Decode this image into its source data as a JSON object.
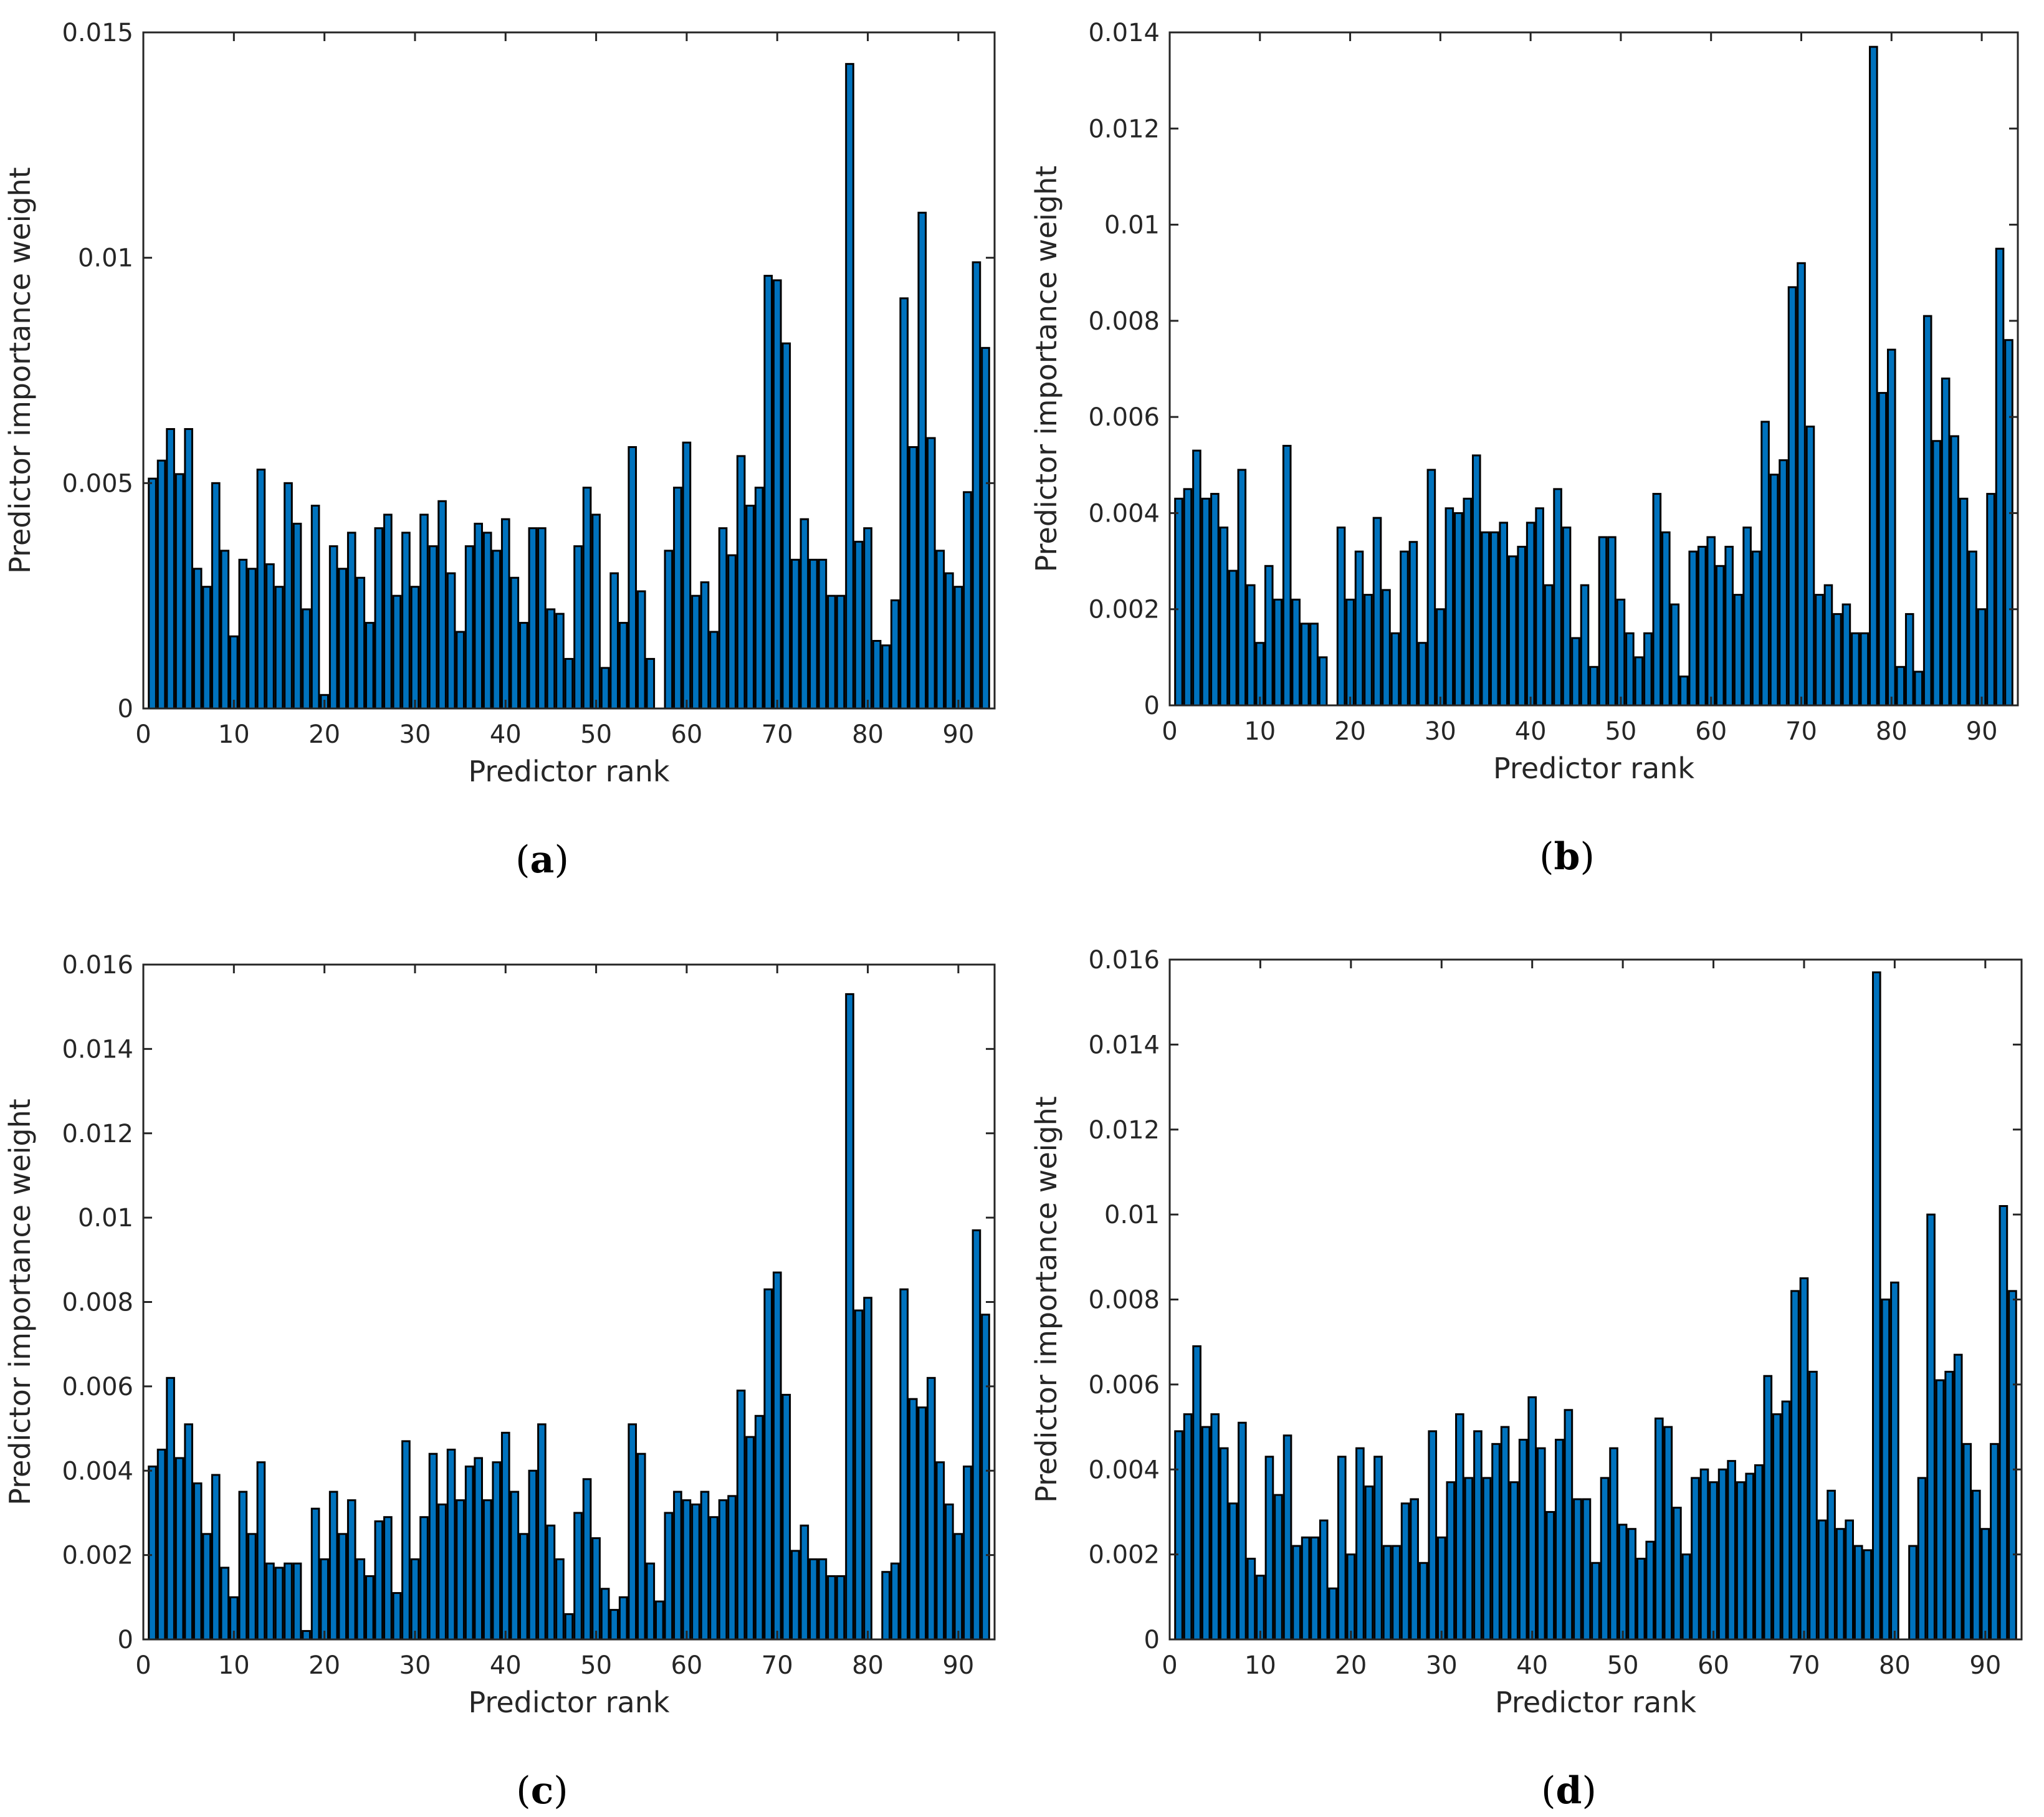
{
  "colors": {
    "bar_fill": "#0072BD",
    "bar_edge": "#000000",
    "axis": "#262626"
  },
  "chart_data": [
    {
      "type": "bar",
      "panel_label": "a",
      "xlabel": "Predictor rank",
      "ylabel": "Predictor importance weight",
      "xlim": [
        0,
        94
      ],
      "xticks": [
        0,
        10,
        20,
        30,
        40,
        50,
        60,
        70,
        80,
        90
      ],
      "ylim": [
        0,
        0.015
      ],
      "yticks": [
        0,
        0.005,
        0.01,
        0.015
      ],
      "ytick_labels": [
        "0",
        "0.005",
        "0.01",
        "0.015"
      ],
      "x": [
        1,
        2,
        3,
        4,
        5,
        6,
        7,
        8,
        9,
        10,
        11,
        12,
        13,
        14,
        15,
        16,
        17,
        18,
        19,
        20,
        21,
        22,
        23,
        24,
        25,
        26,
        27,
        28,
        29,
        30,
        31,
        32,
        33,
        34,
        35,
        36,
        37,
        38,
        39,
        40,
        41,
        42,
        43,
        44,
        45,
        46,
        47,
        48,
        49,
        50,
        51,
        52,
        53,
        54,
        55,
        56,
        57,
        58,
        59,
        60,
        61,
        62,
        63,
        64,
        65,
        66,
        67,
        68,
        69,
        70,
        71,
        72,
        73,
        74,
        75,
        76,
        77,
        78,
        79,
        80,
        81,
        82,
        83,
        84,
        85,
        86,
        87,
        88,
        89,
        90,
        91,
        92,
        93
      ],
      "values": [
        0.0051,
        0.0055,
        0.0062,
        0.0052,
        0.0062,
        0.0031,
        0.0027,
        0.005,
        0.0035,
        0.0016,
        0.0033,
        0.0031,
        0.0053,
        0.0032,
        0.0027,
        0.005,
        0.0041,
        0.0022,
        0.0045,
        0.0003,
        0.0036,
        0.0031,
        0.0039,
        0.0029,
        0.0019,
        0.004,
        0.0043,
        0.0025,
        0.0039,
        0.0027,
        0.0043,
        0.0036,
        0.0046,
        0.003,
        0.0017,
        0.0036,
        0.0041,
        0.0039,
        0.0035,
        0.0042,
        0.0029,
        0.0019,
        0.004,
        0.004,
        0.0022,
        0.0021,
        0.0011,
        0.0036,
        0.0049,
        0.0043,
        0.0009,
        0.003,
        0.0019,
        0.0058,
        0.0026,
        0.0011,
        0,
        0.0035,
        0.0049,
        0.0059,
        0.0025,
        0.0028,
        0.0017,
        0.004,
        0.0034,
        0.0056,
        0.0045,
        0.0049,
        0.0096,
        0.0095,
        0.0081,
        0.0033,
        0.0042,
        0.0033,
        0.0033,
        0.0025,
        0.0025,
        0.0143,
        0.0037,
        0.004,
        0.0015,
        0.0014,
        0.0024,
        0.0091,
        0.0058,
        0.011,
        0.006,
        0.0035,
        0.003,
        0.0027,
        0.0048,
        0.0099,
        0.008
      ]
    },
    {
      "type": "bar",
      "panel_label": "b",
      "xlabel": "Predictor rank",
      "ylabel": "Predictor importance weight",
      "xlim": [
        0,
        94
      ],
      "xticks": [
        0,
        10,
        20,
        30,
        40,
        50,
        60,
        70,
        80,
        90
      ],
      "ylim": [
        0,
        0.014
      ],
      "yticks": [
        0,
        0.002,
        0.004,
        0.006,
        0.008,
        0.01,
        0.012,
        0.014
      ],
      "ytick_labels": [
        "0",
        "0.002",
        "0.004",
        "0.006",
        "0.008",
        "0.01",
        "0.012",
        "0.014"
      ],
      "x": [
        1,
        2,
        3,
        4,
        5,
        6,
        7,
        8,
        9,
        10,
        11,
        12,
        13,
        14,
        15,
        16,
        17,
        18,
        19,
        20,
        21,
        22,
        23,
        24,
        25,
        26,
        27,
        28,
        29,
        30,
        31,
        32,
        33,
        34,
        35,
        36,
        37,
        38,
        39,
        40,
        41,
        42,
        43,
        44,
        45,
        46,
        47,
        48,
        49,
        50,
        51,
        52,
        53,
        54,
        55,
        56,
        57,
        58,
        59,
        60,
        61,
        62,
        63,
        64,
        65,
        66,
        67,
        68,
        69,
        70,
        71,
        72,
        73,
        74,
        75,
        76,
        77,
        78,
        79,
        80,
        81,
        82,
        83,
        84,
        85,
        86,
        87,
        88,
        89,
        90,
        91,
        92,
        93
      ],
      "values": [
        0.0043,
        0.0045,
        0.0053,
        0.0043,
        0.0044,
        0.0037,
        0.0028,
        0.0049,
        0.0025,
        0.0013,
        0.0029,
        0.0022,
        0.0054,
        0.0022,
        0.0017,
        0.0017,
        0.001,
        0,
        0.0037,
        0.0022,
        0.0032,
        0.0023,
        0.0039,
        0.0024,
        0.0015,
        0.0032,
        0.0034,
        0.0013,
        0.0049,
        0.002,
        0.0041,
        0.004,
        0.0043,
        0.0052,
        0.0036,
        0.0036,
        0.0038,
        0.0031,
        0.0033,
        0.0038,
        0.0041,
        0.0025,
        0.0045,
        0.0037,
        0.0014,
        0.0025,
        0.0008,
        0.0035,
        0.0035,
        0.0022,
        0.0015,
        0.001,
        0.0015,
        0.0044,
        0.0036,
        0.0021,
        0.0006,
        0.0032,
        0.0033,
        0.0035,
        0.0029,
        0.0033,
        0.0023,
        0.0037,
        0.0032,
        0.0059,
        0.0048,
        0.0051,
        0.0087,
        0.0092,
        0.0058,
        0.0023,
        0.0025,
        0.0019,
        0.0021,
        0.0015,
        0.0015,
        0.0137,
        0.0065,
        0.0074,
        0.0008,
        0.0019,
        0.0007,
        0.0081,
        0.0055,
        0.0068,
        0.0056,
        0.0043,
        0.0032,
        0.002,
        0.0044,
        0.0095,
        0.0076
      ]
    },
    {
      "type": "bar",
      "panel_label": "c",
      "xlabel": "Predictor rank",
      "ylabel": "Predictor importance weight",
      "xlim": [
        0,
        94
      ],
      "xticks": [
        0,
        10,
        20,
        30,
        40,
        50,
        60,
        70,
        80,
        90
      ],
      "ylim": [
        0,
        0.016
      ],
      "yticks": [
        0,
        0.002,
        0.004,
        0.006,
        0.008,
        0.01,
        0.012,
        0.014,
        0.016
      ],
      "ytick_labels": [
        "0",
        "0.002",
        "0.004",
        "0.006",
        "0.008",
        "0.01",
        "0.012",
        "0.014",
        "0.016"
      ],
      "x": [
        1,
        2,
        3,
        4,
        5,
        6,
        7,
        8,
        9,
        10,
        11,
        12,
        13,
        14,
        15,
        16,
        17,
        18,
        19,
        20,
        21,
        22,
        23,
        24,
        25,
        26,
        27,
        28,
        29,
        30,
        31,
        32,
        33,
        34,
        35,
        36,
        37,
        38,
        39,
        40,
        41,
        42,
        43,
        44,
        45,
        46,
        47,
        48,
        49,
        50,
        51,
        52,
        53,
        54,
        55,
        56,
        57,
        58,
        59,
        60,
        61,
        62,
        63,
        64,
        65,
        66,
        67,
        68,
        69,
        70,
        71,
        72,
        73,
        74,
        75,
        76,
        77,
        78,
        79,
        80,
        81,
        82,
        83,
        84,
        85,
        86,
        87,
        88,
        89,
        90,
        91,
        92,
        93
      ],
      "values": [
        0.0041,
        0.0045,
        0.0062,
        0.0043,
        0.0051,
        0.0037,
        0.0025,
        0.0039,
        0.0017,
        0.001,
        0.0035,
        0.0025,
        0.0042,
        0.0018,
        0.0017,
        0.0018,
        0.0018,
        0.0002,
        0.0031,
        0.0019,
        0.0035,
        0.0025,
        0.0033,
        0.0019,
        0.0015,
        0.0028,
        0.0029,
        0.0011,
        0.0047,
        0.0019,
        0.0029,
        0.0044,
        0.0032,
        0.0045,
        0.0033,
        0.0041,
        0.0043,
        0.0033,
        0.0042,
        0.0049,
        0.0035,
        0.0025,
        0.004,
        0.0051,
        0.0027,
        0.0019,
        0.0006,
        0.003,
        0.0038,
        0.0024,
        0.0012,
        0.0007,
        0.001,
        0.0051,
        0.0044,
        0.0018,
        0.0009,
        0.003,
        0.0035,
        0.0033,
        0.0032,
        0.0035,
        0.0029,
        0.0033,
        0.0034,
        0.0059,
        0.0048,
        0.0053,
        0.0083,
        0.0087,
        0.0058,
        0.0021,
        0.0027,
        0.0019,
        0.0019,
        0.0015,
        0.0015,
        0.0153,
        0.0078,
        0.0081,
        0,
        0.0016,
        0.0018,
        0.0083,
        0.0057,
        0.0055,
        0.0062,
        0.0042,
        0.0032,
        0.0025,
        0.0041,
        0.0097,
        0.0077
      ]
    },
    {
      "type": "bar",
      "panel_label": "d",
      "xlabel": "Predictor rank",
      "ylabel": "Predictor importance weight",
      "xlim": [
        0,
        94
      ],
      "xticks": [
        0,
        10,
        20,
        30,
        40,
        50,
        60,
        70,
        80,
        90
      ],
      "ylim": [
        0,
        0.016
      ],
      "yticks": [
        0,
        0.002,
        0.004,
        0.006,
        0.008,
        0.01,
        0.012,
        0.014,
        0.016
      ],
      "ytick_labels": [
        "0",
        "0.002",
        "0.004",
        "0.006",
        "0.008",
        "0.01",
        "0.012",
        "0.014",
        "0.016"
      ],
      "x": [
        1,
        2,
        3,
        4,
        5,
        6,
        7,
        8,
        9,
        10,
        11,
        12,
        13,
        14,
        15,
        16,
        17,
        18,
        19,
        20,
        21,
        22,
        23,
        24,
        25,
        26,
        27,
        28,
        29,
        30,
        31,
        32,
        33,
        34,
        35,
        36,
        37,
        38,
        39,
        40,
        41,
        42,
        43,
        44,
        45,
        46,
        47,
        48,
        49,
        50,
        51,
        52,
        53,
        54,
        55,
        56,
        57,
        58,
        59,
        60,
        61,
        62,
        63,
        64,
        65,
        66,
        67,
        68,
        69,
        70,
        71,
        72,
        73,
        74,
        75,
        76,
        77,
        78,
        79,
        80,
        81,
        82,
        83,
        84,
        85,
        86,
        87,
        88,
        89,
        90,
        91,
        92,
        93
      ],
      "values": [
        0.0049,
        0.0053,
        0.0069,
        0.005,
        0.0053,
        0.0045,
        0.0032,
        0.0051,
        0.0019,
        0.0015,
        0.0043,
        0.0034,
        0.0048,
        0.0022,
        0.0024,
        0.0024,
        0.0028,
        0.0012,
        0.0043,
        0.002,
        0.0045,
        0.0036,
        0.0043,
        0.0022,
        0.0022,
        0.0032,
        0.0033,
        0.0018,
        0.0049,
        0.0024,
        0.0037,
        0.0053,
        0.0038,
        0.0049,
        0.0038,
        0.0046,
        0.005,
        0.0037,
        0.0047,
        0.0057,
        0.0045,
        0.003,
        0.0047,
        0.0054,
        0.0033,
        0.0033,
        0.0018,
        0.0038,
        0.0045,
        0.0027,
        0.0026,
        0.0019,
        0.0023,
        0.0052,
        0.005,
        0.0031,
        0.002,
        0.0038,
        0.004,
        0.0037,
        0.004,
        0.0042,
        0.0037,
        0.0039,
        0.0041,
        0.0062,
        0.0053,
        0.0056,
        0.0082,
        0.0085,
        0.0063,
        0.0028,
        0.0035,
        0.0026,
        0.0028,
        0.0022,
        0.0021,
        0.0157,
        0.008,
        0.0084,
        0,
        0.0022,
        0.0038,
        0.01,
        0.0061,
        0.0063,
        0.0067,
        0.0046,
        0.0035,
        0.0026,
        0.0046,
        0.0102,
        0.0082
      ]
    }
  ]
}
